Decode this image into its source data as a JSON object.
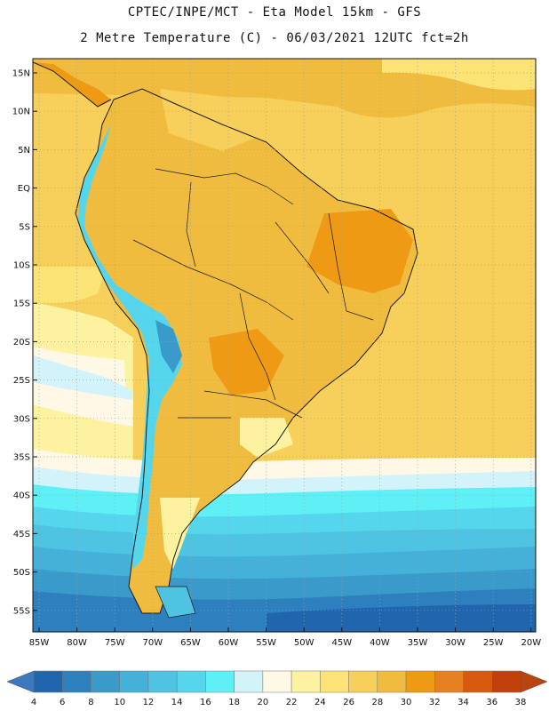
{
  "header": {
    "line1": "CPTEC/INPE/MCT -  Eta Model 15km - GFS",
    "line2": "2 Metre Temperature (C) - 06/03/2021 12UTC fct=2h"
  },
  "map": {
    "lat_labels": [
      "15N",
      "10N",
      "5N",
      "EQ",
      "5S",
      "10S",
      "15S",
      "20S",
      "25S",
      "30S",
      "35S",
      "40S",
      "45S",
      "50S",
      "55S"
    ],
    "lon_labels": [
      "85W",
      "80W",
      "75W",
      "70W",
      "65W",
      "60W",
      "55W",
      "50W",
      "45W",
      "40W",
      "35W",
      "30W",
      "25W",
      "20W"
    ],
    "field": "2 Metre Temperature",
    "units": "C"
  },
  "colorbar": {
    "values": [
      "4",
      "6",
      "8",
      "10",
      "12",
      "14",
      "16",
      "18",
      "20",
      "22",
      "24",
      "26",
      "28",
      "30",
      "32",
      "34",
      "36",
      "38"
    ],
    "colors": [
      "#2166ac",
      "#2d7fbe",
      "#3a9ac9",
      "#45b0d8",
      "#4ec3e2",
      "#56d6ec",
      "#5ff0f6",
      "#d3f3fb",
      "#fff8e6",
      "#fdf2a0",
      "#fbe376",
      "#f7d05c",
      "#f0bc40",
      "#ee9a14",
      "#e68020",
      "#d85a0e",
      "#c2400b"
    ],
    "low_arrow_color": "#3a78c0",
    "high_arrow_color": "#b9440f"
  }
}
